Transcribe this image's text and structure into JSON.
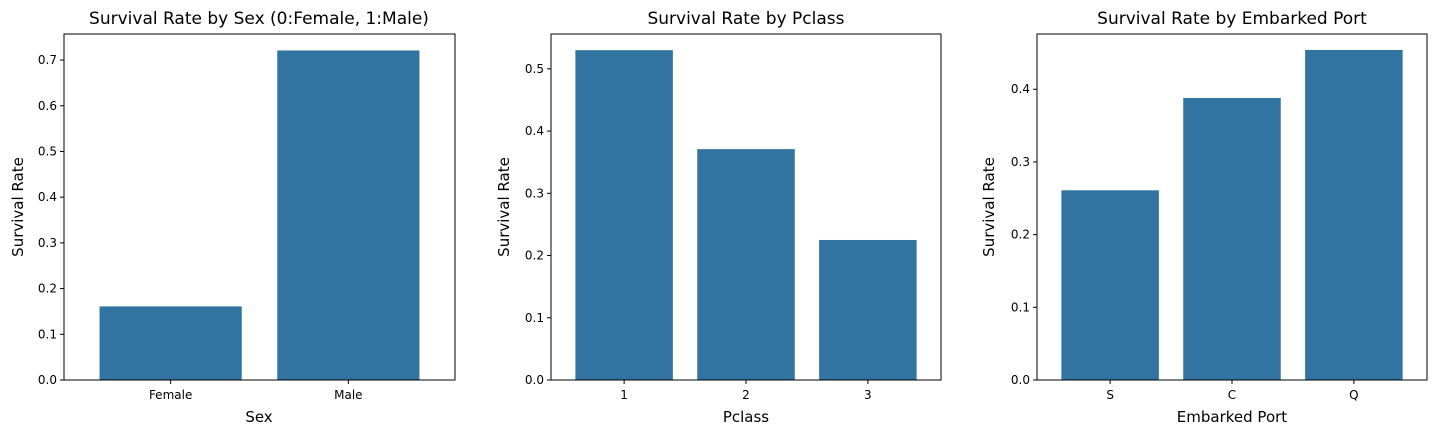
{
  "bar_color": "#3274a1",
  "chart_data": [
    {
      "type": "bar",
      "title": "Survival Rate by Sex (0:Female, 1:Male)",
      "xlabel": "Sex",
      "ylabel": "Survival Rate",
      "categories": [
        "Female",
        "Male"
      ],
      "values": [
        0.161,
        0.721
      ],
      "ylim": [
        0,
        0.757
      ],
      "yticks": [
        "0.0",
        "0.1",
        "0.2",
        "0.3",
        "0.4",
        "0.5",
        "0.6",
        "0.7"
      ],
      "ytick_values": [
        0,
        0.1,
        0.2,
        0.3,
        0.4,
        0.5,
        0.6,
        0.7
      ],
      "grid": false
    },
    {
      "type": "bar",
      "title": "Survival Rate by Pclass",
      "xlabel": "Pclass",
      "ylabel": "Survival Rate",
      "categories": [
        "1",
        "2",
        "3"
      ],
      "values": [
        0.53,
        0.371,
        0.225
      ],
      "ylim": [
        0,
        0.556
      ],
      "yticks": [
        "0.0",
        "0.1",
        "0.2",
        "0.3",
        "0.4",
        "0.5"
      ],
      "ytick_values": [
        0,
        0.1,
        0.2,
        0.3,
        0.4,
        0.5
      ],
      "grid": false
    },
    {
      "type": "bar",
      "title": "Survival Rate by Embarked Port",
      "xlabel": "Embarked Port",
      "ylabel": "Survival Rate",
      "categories": [
        "S",
        "C",
        "Q"
      ],
      "values": [
        0.261,
        0.388,
        0.454
      ],
      "ylim": [
        0,
        0.476
      ],
      "yticks": [
        "0.0",
        "0.1",
        "0.2",
        "0.3",
        "0.4"
      ],
      "ytick_values": [
        0,
        0.1,
        0.2,
        0.3,
        0.4
      ],
      "grid": false
    }
  ]
}
